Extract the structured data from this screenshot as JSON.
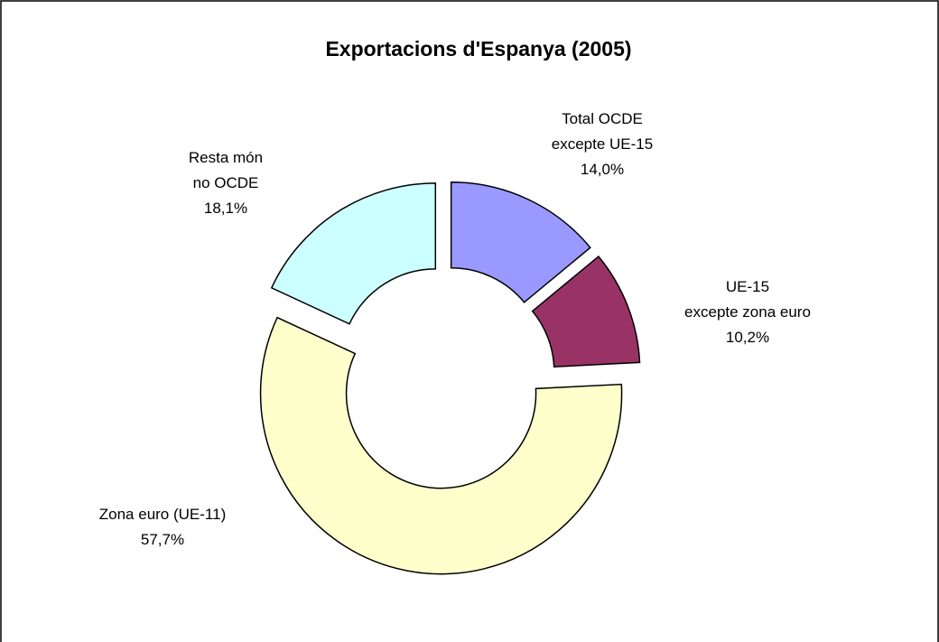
{
  "chart_data": {
    "type": "donut",
    "title": "Exportacions d'Espanya (2005)",
    "categories": [
      "Total OCDE\nexcepte UE-15",
      "UE-15\nexcepte zona euro",
      "Zona euro (UE-11)",
      "Resta món\nno OCDE"
    ],
    "values": [
      14.0,
      10.2,
      57.7,
      18.1
    ],
    "value_labels": [
      "14,0%",
      "10,2%",
      "57,7%",
      "18,1%"
    ],
    "colors": [
      "#9999ff",
      "#993366",
      "#ffffcc",
      "#ccffff"
    ]
  }
}
